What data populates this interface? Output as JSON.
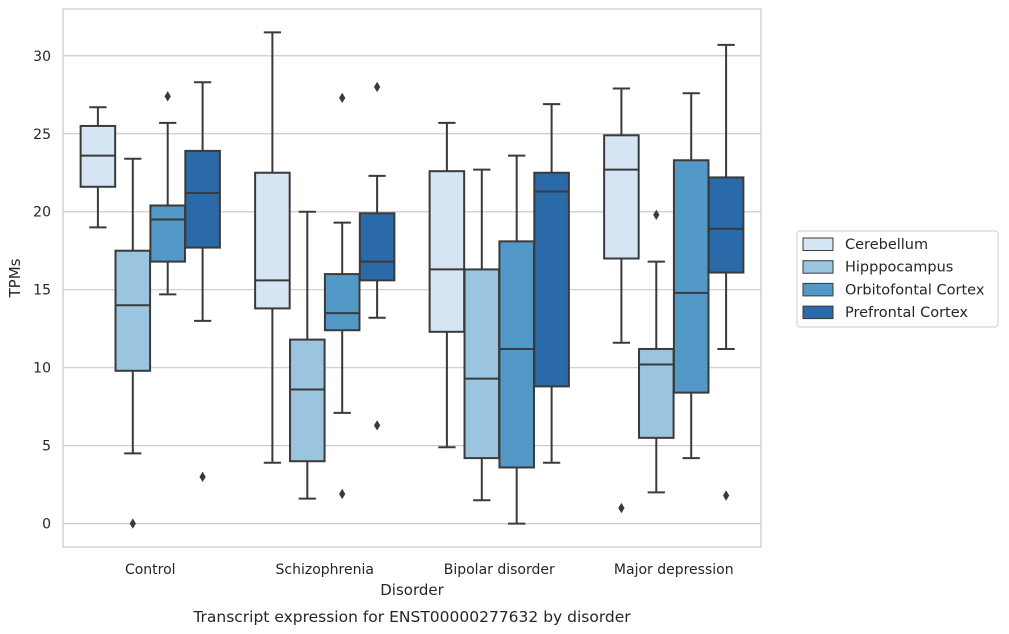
{
  "chart_data": {
    "type": "box",
    "xlabel": "Disorder",
    "ylabel": "TPMs",
    "caption": "Transcript expression for ENST00000277632 by disorder",
    "ylim": [
      -1.5,
      33
    ],
    "yticks": [
      0,
      5,
      10,
      15,
      20,
      25,
      30
    ],
    "grid": true,
    "legend_position": "right",
    "categories": [
      "Control",
      "Schizophrenia",
      "Bipolar disorder",
      "Major depression"
    ],
    "series": [
      {
        "name": "Cerebellum",
        "color": "#d6e5f4",
        "boxes": [
          {
            "whisker_low": 19.0,
            "q1": 21.6,
            "median": 23.6,
            "q3": 25.5,
            "whisker_high": 26.7,
            "outliers": []
          },
          {
            "whisker_low": 3.9,
            "q1": 13.8,
            "median": 15.6,
            "q3": 22.5,
            "whisker_high": 31.5,
            "outliers": []
          },
          {
            "whisker_low": 4.9,
            "q1": 12.3,
            "median": 16.3,
            "q3": 22.6,
            "whisker_high": 25.7,
            "outliers": []
          },
          {
            "whisker_low": 11.6,
            "q1": 17.0,
            "median": 22.7,
            "q3": 24.9,
            "whisker_high": 27.9,
            "outliers": [
              1.0
            ]
          }
        ]
      },
      {
        "name": "Hipppocampus",
        "color": "#9bc4df",
        "boxes": [
          {
            "whisker_low": 4.5,
            "q1": 9.8,
            "median": 14.0,
            "q3": 17.5,
            "whisker_high": 23.4,
            "outliers": [
              0.0
            ]
          },
          {
            "whisker_low": 1.6,
            "q1": 4.0,
            "median": 8.6,
            "q3": 11.8,
            "whisker_high": 20.0,
            "outliers": []
          },
          {
            "whisker_low": 1.5,
            "q1": 4.2,
            "median": 9.3,
            "q3": 16.3,
            "whisker_high": 22.7,
            "outliers": []
          },
          {
            "whisker_low": 2.0,
            "q1": 5.5,
            "median": 10.2,
            "q3": 11.2,
            "whisker_high": 16.8,
            "outliers": [
              19.8
            ]
          }
        ]
      },
      {
        "name": "Orbitofontal Cortex",
        "color": "#5299c8",
        "boxes": [
          {
            "whisker_low": 14.7,
            "q1": 16.8,
            "median": 19.5,
            "q3": 20.4,
            "whisker_high": 25.7,
            "outliers": [
              27.4
            ]
          },
          {
            "whisker_low": 7.1,
            "q1": 12.4,
            "median": 13.5,
            "q3": 16.0,
            "whisker_high": 19.3,
            "outliers": [
              27.3,
              1.9
            ]
          },
          {
            "whisker_low": 0.0,
            "q1": 3.6,
            "median": 11.2,
            "q3": 18.1,
            "whisker_high": 23.6,
            "outliers": []
          },
          {
            "whisker_low": 4.2,
            "q1": 8.4,
            "median": 14.8,
            "q3": 23.3,
            "whisker_high": 27.6,
            "outliers": []
          }
        ]
      },
      {
        "name": "Prefrontal Cortex",
        "color": "#2b6aa8",
        "boxes": [
          {
            "whisker_low": 13.0,
            "q1": 17.7,
            "median": 21.2,
            "q3": 23.9,
            "whisker_high": 28.3,
            "outliers": [
              3.0
            ]
          },
          {
            "whisker_low": 13.2,
            "q1": 15.6,
            "median": 16.8,
            "q3": 19.9,
            "whisker_high": 22.3,
            "outliers": [
              28.0,
              6.3
            ]
          },
          {
            "whisker_low": 3.9,
            "q1": 8.8,
            "median": 21.3,
            "q3": 22.5,
            "whisker_high": 26.9,
            "outliers": []
          },
          {
            "whisker_low": 11.2,
            "q1": 16.1,
            "median": 18.9,
            "q3": 22.2,
            "whisker_high": 30.7,
            "outliers": [
              1.8
            ]
          }
        ]
      }
    ]
  }
}
